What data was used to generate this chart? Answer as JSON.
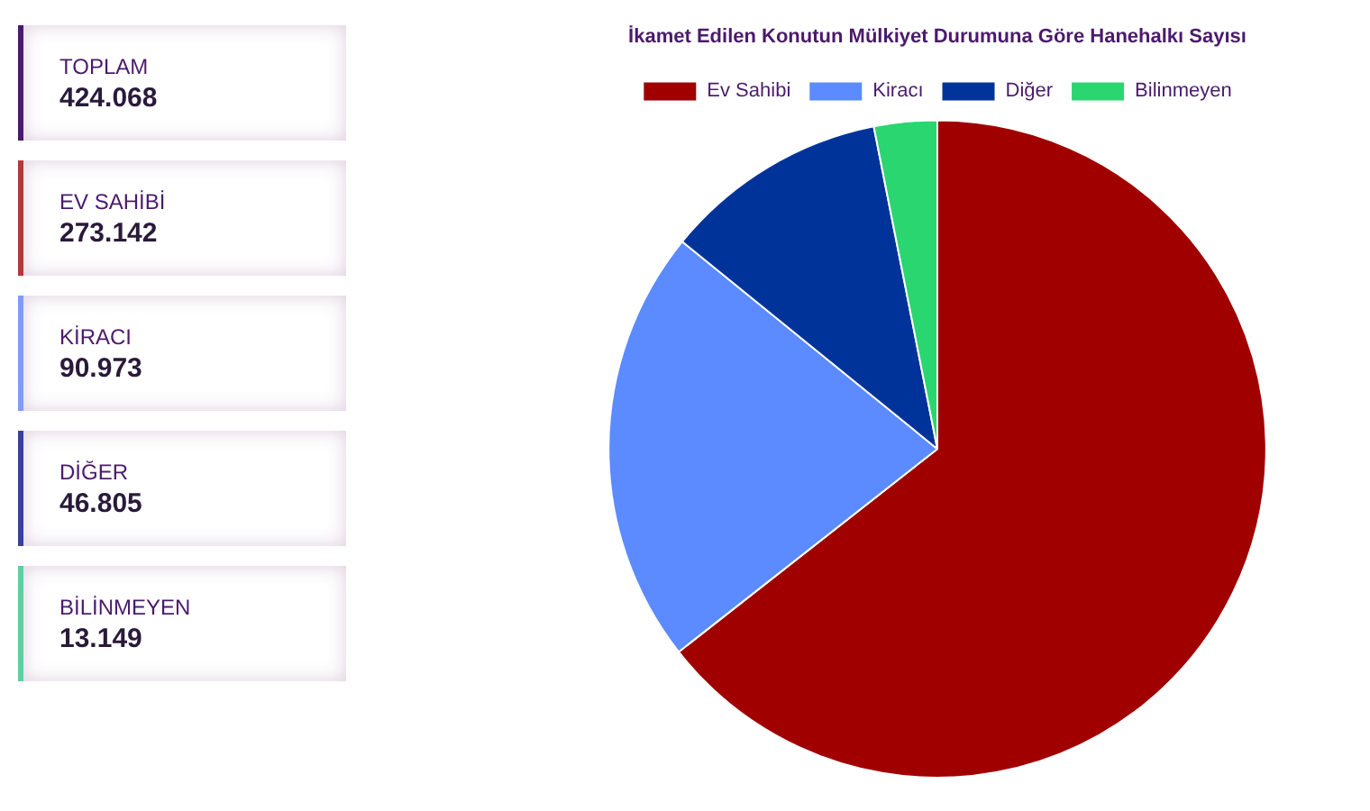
{
  "chart_data": [
    {
      "type": "other",
      "annotations": [
        "TOPLAM",
        "424.068",
        "EV SAHİBİ",
        "273.142",
        "KİRACI",
        "90.973",
        "DİĞER",
        "46.805",
        "BİLİNMEYEN",
        "13.149"
      ],
      "colors": [
        "#4b1a6b",
        "#b03a3a",
        "#7f9cf5",
        "#3a3f9a",
        "#5fcf9f"
      ]
    },
    {
      "type": "pie",
      "title": "İkamet Edilen Konutun Mülkiyet Durumuna Göre Hanehalkı Sayısı",
      "categories": [
        "Ev Sahibi",
        "Kiracı",
        "Diğer",
        "Bilinmeyen"
      ],
      "values": [
        64.41,
        21.45,
        11.04,
        3.1
      ],
      "colors": [
        "#a00000",
        "#5b8bff",
        "#00339a",
        "#2ad670"
      ],
      "legend": "top"
    }
  ]
}
